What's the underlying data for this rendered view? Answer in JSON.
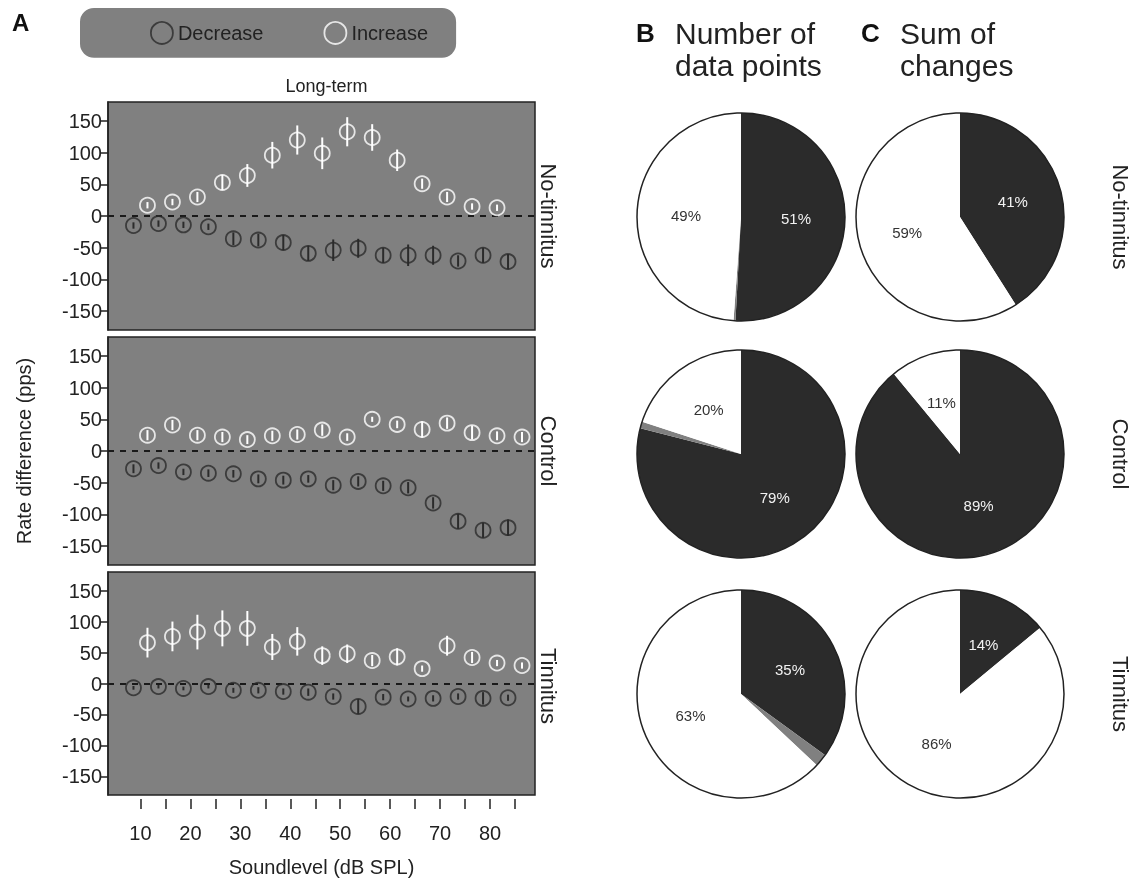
{
  "chart_data": [
    {
      "type": "scatter",
      "title": "Long-term",
      "subtitle": "No-tinnitus",
      "annotations": [
        "A"
      ],
      "legend": "top",
      "marker": "circle",
      "tick_labels": "y",
      "xlim": [
        3.5,
        89
      ],
      "ylim": [
        -180,
        180
      ],
      "yticks": [
        -150,
        -100,
        -50,
        0,
        50,
        100,
        150
      ],
      "ref_lines": [
        {
          "axis": "y",
          "value": 0,
          "line_style": "dashed",
          "color": "#1a1a1a"
        }
      ],
      "series": [
        {
          "name": "Decrease",
          "color": "#2b2b2b",
          "x": [
            8.6,
            13.6,
            18.6,
            23.6,
            28.6,
            33.6,
            38.6,
            43.6,
            48.6,
            53.6,
            58.6,
            63.6,
            68.6,
            73.6,
            78.6,
            83.6
          ],
          "values": [
            -15,
            -12,
            -14,
            -17,
            -36,
            -38,
            -42,
            -59,
            -54,
            -51,
            -62,
            -62,
            -62,
            -71,
            -62,
            -72
          ],
          "errors": [
            5,
            5,
            5,
            5,
            10,
            10,
            12,
            12,
            17,
            15,
            12,
            17,
            15,
            9,
            12,
            12
          ]
        },
        {
          "name": "Increase",
          "color": "#ffffff",
          "x": [
            11.4,
            16.4,
            21.4,
            26.4,
            31.4,
            36.4,
            41.4,
            46.4,
            51.4,
            56.4,
            61.4,
            66.4,
            71.4,
            76.4,
            81.4
          ],
          "values": [
            17,
            22,
            30,
            53,
            64,
            96,
            120,
            99,
            133,
            124,
            88,
            51,
            30,
            15,
            13
          ],
          "errors": [
            5,
            5,
            8,
            12,
            18,
            21,
            23,
            25,
            23,
            21,
            17,
            8,
            8,
            5,
            5
          ]
        }
      ]
    },
    {
      "type": "scatter",
      "subtitle": "Control",
      "ylabel": "Rate difference (pps)",
      "marker": "circle",
      "tick_labels": "y",
      "xlim": [
        3.5,
        89
      ],
      "ylim": [
        -180,
        180
      ],
      "yticks": [
        -150,
        -100,
        -50,
        0,
        50,
        100,
        150
      ],
      "ref_lines": [
        {
          "axis": "y",
          "value": 0,
          "line_style": "dashed",
          "color": "#1a1a1a"
        }
      ],
      "series": [
        {
          "color": "#2b2b2b",
          "x": [
            8.6,
            13.6,
            18.6,
            23.6,
            28.6,
            33.6,
            38.6,
            43.6,
            48.6,
            53.6,
            58.6,
            63.6,
            68.6,
            73.6,
            78.6,
            83.6
          ],
          "values": [
            -28,
            -23,
            -33,
            -35,
            -36,
            -44,
            -46,
            -44,
            -54,
            -48,
            -55,
            -58,
            -82,
            -111,
            -125,
            -121
          ],
          "errors": [
            7,
            5,
            5,
            6,
            6,
            7,
            7,
            6,
            8,
            8,
            8,
            9,
            9,
            12,
            12,
            13
          ]
        },
        {
          "color": "#ffffff",
          "x": [
            11.4,
            16.4,
            21.4,
            26.4,
            31.4,
            36.4,
            41.4,
            46.4,
            51.4,
            56.4,
            61.4,
            66.4,
            71.4,
            76.4,
            81.4,
            86.4
          ],
          "values": [
            25,
            41,
            25,
            22,
            18,
            24,
            26,
            33,
            22,
            50,
            42,
            34,
            44,
            29,
            24,
            22
          ],
          "errors": [
            8,
            8,
            8,
            8,
            7,
            8,
            8,
            9,
            6,
            4,
            6,
            13,
            9,
            11,
            7,
            8
          ]
        }
      ]
    },
    {
      "type": "scatter",
      "subtitle": "Tinnitus",
      "xlabel": "Soundlevel (dB SPL)",
      "marker": "circle",
      "xlim": [
        3.5,
        89
      ],
      "xticks": [
        10,
        {
          "value": 15,
          "label": null
        },
        20,
        {
          "value": 25,
          "label": null
        },
        30,
        {
          "value": 35,
          "label": null
        },
        40,
        {
          "value": 45,
          "label": null
        },
        50,
        {
          "value": 55,
          "label": null
        },
        60,
        {
          "value": 65,
          "label": null
        },
        70,
        {
          "value": 75,
          "label": null
        },
        80,
        {
          "value": 85,
          "label": null
        }
      ],
      "ylim": [
        -180,
        180
      ],
      "yticks": [
        -150,
        -100,
        -50,
        0,
        50,
        100,
        150
      ],
      "ref_lines": [
        {
          "axis": "y",
          "value": 0,
          "line_style": "dashed",
          "color": "#1a1a1a"
        }
      ],
      "series": [
        {
          "color": "#2b2b2b",
          "x": [
            8.6,
            13.6,
            18.6,
            23.6,
            28.6,
            33.6,
            38.6,
            43.6,
            48.6,
            53.6,
            58.6,
            63.6,
            68.6,
            73.6,
            78.6,
            83.6
          ],
          "values": [
            -7,
            -5,
            -8,
            -5,
            -11,
            -11,
            -13,
            -14,
            -21,
            -37,
            -22,
            -25,
            -24,
            -21,
            -24,
            -23
          ],
          "errors": [
            3,
            3,
            3,
            3,
            4,
            5,
            5,
            6,
            5,
            12,
            5,
            4,
            5,
            5,
            10,
            5
          ]
        },
        {
          "color": "#ffffff",
          "x": [
            11.4,
            16.4,
            21.4,
            26.4,
            31.4,
            36.4,
            41.4,
            46.4,
            51.4,
            56.4,
            61.4,
            66.4,
            71.4,
            76.4,
            81.4,
            86.4
          ],
          "values": [
            66,
            76,
            83,
            89,
            89,
            59,
            68,
            45,
            48,
            37,
            43,
            24,
            61,
            42,
            33,
            29
          ],
          "errors": [
            24,
            24,
            28,
            29,
            28,
            21,
            23,
            15,
            15,
            9,
            14,
            5,
            16,
            9,
            5,
            5
          ]
        }
      ]
    },
    {
      "type": "pie",
      "title": "Number of data points",
      "annotations": [
        "B"
      ],
      "categories": [
        null,
        null,
        null
      ],
      "values": [
        51,
        0.3,
        49
      ],
      "colors": [
        "#2b2b2b",
        "#808080",
        "#ffffff"
      ],
      "value_labels": [
        "51%",
        null,
        "49%"
      ]
    },
    {
      "type": "pie",
      "title": "Sum of changes",
      "subtitle": "No-tinnitus",
      "annotations": [
        "C"
      ],
      "categories": [
        null,
        null
      ],
      "values": [
        41,
        59
      ],
      "colors": [
        "#2b2b2b",
        "#ffffff"
      ],
      "value_labels": [
        "41%",
        "59%"
      ]
    },
    {
      "type": "pie",
      "categories": [
        null,
        null,
        null
      ],
      "values": [
        79,
        1,
        20
      ],
      "colors": [
        "#2b2b2b",
        "#808080",
        "#ffffff"
      ],
      "value_labels": [
        "79%",
        null,
        "20%"
      ]
    },
    {
      "type": "pie",
      "subtitle": "Control",
      "categories": [
        null,
        null
      ],
      "values": [
        89,
        11
      ],
      "colors": [
        "#2b2b2b",
        "#ffffff"
      ],
      "value_labels": [
        "89%",
        "11%"
      ]
    },
    {
      "type": "pie",
      "categories": [
        null,
        null,
        null
      ],
      "values": [
        35,
        2,
        63
      ],
      "colors": [
        "#2b2b2b",
        "#808080",
        "#ffffff"
      ],
      "value_labels": [
        "35%",
        null,
        "63%"
      ]
    },
    {
      "type": "pie",
      "subtitle": "Tinnitus",
      "categories": [
        null,
        null
      ],
      "values": [
        14,
        86
      ],
      "colors": [
        "#2b2b2b",
        "#ffffff"
      ],
      "value_labels": [
        "14%",
        "86%"
      ]
    }
  ]
}
